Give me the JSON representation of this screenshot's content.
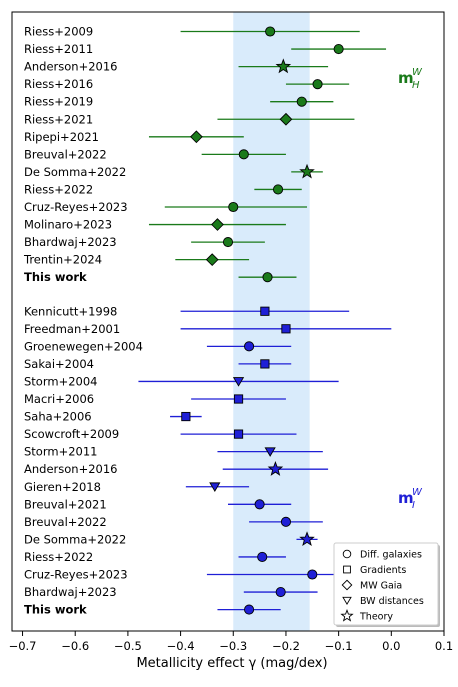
{
  "chart_data": {
    "type": "scatter",
    "xlabel": "Metallicity effect γ (mag/dex)",
    "xlim": [
      -0.72,
      0.1
    ],
    "xticks": [
      "−0.7",
      "−0.6",
      "−0.5",
      "−0.4",
      "−0.3",
      "−0.2",
      "−0.1",
      "0.0",
      "0.1"
    ],
    "xtick_values": [
      -0.7,
      -0.6,
      -0.5,
      -0.4,
      -0.3,
      -0.2,
      -0.1,
      0.0,
      0.1
    ],
    "band": [
      -0.3,
      -0.155
    ],
    "grid": false,
    "series": [
      {
        "name": "mH",
        "label_main": "m",
        "label_super": "W",
        "label_sub": "H",
        "color": "#1a7a1a",
        "points": [
          {
            "label": "Riess+2009",
            "value": -0.23,
            "lo": -0.4,
            "hi": -0.06,
            "marker": "circle",
            "bold": false
          },
          {
            "label": "Riess+2011",
            "value": -0.1,
            "lo": -0.19,
            "hi": -0.01,
            "marker": "circle",
            "bold": false
          },
          {
            "label": "Anderson+2016",
            "value": -0.205,
            "lo": -0.29,
            "hi": -0.12,
            "marker": "star",
            "bold": false
          },
          {
            "label": "Riess+2016",
            "value": -0.14,
            "lo": -0.2,
            "hi": -0.08,
            "marker": "circle",
            "bold": false
          },
          {
            "label": "Riess+2019",
            "value": -0.17,
            "lo": -0.23,
            "hi": -0.11,
            "marker": "circle",
            "bold": false
          },
          {
            "label": "Riess+2021",
            "value": -0.2,
            "lo": -0.33,
            "hi": -0.07,
            "marker": "diamond",
            "bold": false
          },
          {
            "label": "Ripepi+2021",
            "value": -0.37,
            "lo": -0.46,
            "hi": -0.28,
            "marker": "diamond",
            "bold": false
          },
          {
            "label": "Breuval+2022",
            "value": -0.28,
            "lo": -0.36,
            "hi": -0.2,
            "marker": "circle",
            "bold": false
          },
          {
            "label": "De Somma+2022",
            "value": -0.16,
            "lo": -0.19,
            "hi": -0.13,
            "marker": "star",
            "bold": false
          },
          {
            "label": "Riess+2022",
            "value": -0.215,
            "lo": -0.26,
            "hi": -0.17,
            "marker": "circle",
            "bold": false
          },
          {
            "label": "Cruz-Reyes+2023",
            "value": -0.3,
            "lo": -0.43,
            "hi": -0.16,
            "marker": "circle",
            "bold": false
          },
          {
            "label": "Molinaro+2023",
            "value": -0.33,
            "lo": -0.46,
            "hi": -0.2,
            "marker": "diamond",
            "bold": false
          },
          {
            "label": "Bhardwaj+2023",
            "value": -0.31,
            "lo": -0.38,
            "hi": -0.24,
            "marker": "circle",
            "bold": false
          },
          {
            "label": "Trentin+2024",
            "value": -0.34,
            "lo": -0.41,
            "hi": -0.27,
            "marker": "diamond",
            "bold": false
          },
          {
            "label": "This work",
            "value": -0.235,
            "lo": -0.29,
            "hi": -0.18,
            "marker": "circle",
            "bold": true
          }
        ]
      },
      {
        "name": "mI",
        "label_main": "m",
        "label_super": "W",
        "label_sub": "I",
        "color": "#1f1fd6",
        "points": [
          {
            "label": "Kennicutt+1998",
            "value": -0.24,
            "lo": -0.4,
            "hi": -0.08,
            "marker": "square",
            "bold": false
          },
          {
            "label": "Freedman+2001",
            "value": -0.2,
            "lo": -0.4,
            "hi": 0.0,
            "marker": "square",
            "bold": false
          },
          {
            "label": "Groenewegen+2004",
            "value": -0.27,
            "lo": -0.35,
            "hi": -0.19,
            "marker": "circle",
            "bold": false
          },
          {
            "label": "Sakai+2004",
            "value": -0.24,
            "lo": -0.29,
            "hi": -0.19,
            "marker": "square",
            "bold": false
          },
          {
            "label": "Storm+2004",
            "value": -0.29,
            "lo": -0.48,
            "hi": -0.1,
            "marker": "triangle",
            "bold": false
          },
          {
            "label": "Macri+2006",
            "value": -0.29,
            "lo": -0.38,
            "hi": -0.2,
            "marker": "square",
            "bold": false
          },
          {
            "label": "Saha+2006",
            "value": -0.39,
            "lo": -0.42,
            "hi": -0.36,
            "marker": "square",
            "bold": false
          },
          {
            "label": "Scowcroft+2009",
            "value": -0.29,
            "lo": -0.4,
            "hi": -0.18,
            "marker": "square",
            "bold": false
          },
          {
            "label": "Storm+2011",
            "value": -0.23,
            "lo": -0.33,
            "hi": -0.13,
            "marker": "triangle",
            "bold": false
          },
          {
            "label": "Anderson+2016",
            "value": -0.22,
            "lo": -0.32,
            "hi": -0.12,
            "marker": "star",
            "bold": false
          },
          {
            "label": "Gieren+2018",
            "value": -0.335,
            "lo": -0.39,
            "hi": -0.27,
            "marker": "triangle",
            "bold": false
          },
          {
            "label": "Breuval+2021",
            "value": -0.25,
            "lo": -0.31,
            "hi": -0.19,
            "marker": "circle",
            "bold": false
          },
          {
            "label": "Breuval+2022",
            "value": -0.2,
            "lo": -0.27,
            "hi": -0.13,
            "marker": "circle",
            "bold": false
          },
          {
            "label": "De Somma+2022",
            "value": -0.16,
            "lo": -0.18,
            "hi": -0.14,
            "marker": "star",
            "bold": false
          },
          {
            "label": "Riess+2022",
            "value": -0.245,
            "lo": -0.29,
            "hi": -0.2,
            "marker": "circle",
            "bold": false
          },
          {
            "label": "Cruz-Reyes+2023",
            "value": -0.15,
            "lo": -0.35,
            "hi": 0.05,
            "marker": "circle",
            "bold": false
          },
          {
            "label": "Bhardwaj+2023",
            "value": -0.21,
            "lo": -0.28,
            "hi": -0.14,
            "marker": "circle",
            "bold": false
          },
          {
            "label": "This work",
            "value": -0.27,
            "lo": -0.33,
            "hi": -0.21,
            "marker": "circle",
            "bold": true
          }
        ]
      }
    ],
    "legend": {
      "position": "bottom-right",
      "entries": [
        {
          "label": "Diff. galaxies",
          "marker": "circle"
        },
        {
          "label": "Gradients",
          "marker": "square"
        },
        {
          "label": "MW Gaia",
          "marker": "diamond"
        },
        {
          "label": "BW distances",
          "marker": "triangle"
        },
        {
          "label": "Theory",
          "marker": "star"
        }
      ]
    }
  }
}
